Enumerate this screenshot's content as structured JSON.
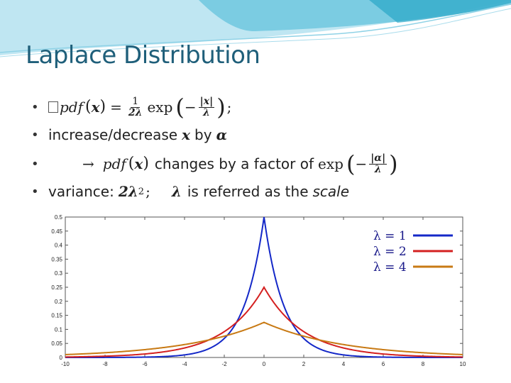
{
  "slide": {
    "title": "Laplace Distribution"
  },
  "bullets": [
    {
      "marker": "•",
      "glyph": "",
      "pdf": "pdf",
      "x": "x",
      "eq": "=",
      "frac1_num": "1",
      "frac1_den": "2λ",
      "exp": "exp",
      "frac2_num": "|x|",
      "frac2_den": "λ",
      "tail": ";"
    },
    {
      "marker": "•",
      "text_a": "increase/decrease",
      "x": "x",
      "text_b": "by",
      "alpha": "α"
    },
    {
      "marker": "•",
      "arrow": "→",
      "pdf": "pdf",
      "x": "x",
      "text": "changes by a factor of",
      "exp": "exp",
      "frac_num": "|α|",
      "frac_den": "λ"
    },
    {
      "marker": "•",
      "label": "variance:",
      "value": "2λ",
      "sup": "2",
      "sep": ";",
      "lambda": "λ",
      "text": "is referred as the",
      "scale": "scale"
    }
  ],
  "chart_data": {
    "type": "line",
    "title": "",
    "xlabel": "",
    "ylabel": "",
    "xlim": [
      -10,
      10
    ],
    "ylim": [
      0,
      0.5
    ],
    "x_ticks": [
      -10,
      -8,
      -6,
      -4,
      -2,
      0,
      2,
      4,
      6,
      8,
      10
    ],
    "y_ticks": [
      0,
      0.05,
      0.1,
      0.15,
      0.2,
      0.25,
      0.3,
      0.35,
      0.4,
      0.45,
      0.5
    ],
    "y_tick_labels": [
      "0",
      "0.05",
      "0.1",
      "0.15",
      "0.2",
      "0.25",
      "0.3",
      "0.35",
      "0.4",
      "0.45",
      "0.5"
    ],
    "grid": false,
    "legend_position": "top-right",
    "series": [
      {
        "name": "λ = 1",
        "lambda": 1,
        "color": "#1428c8"
      },
      {
        "name": "λ = 2",
        "lambda": 2,
        "color": "#d42020"
      },
      {
        "name": "λ = 4",
        "lambda": 4,
        "color": "#c87a14"
      }
    ]
  },
  "colors": {
    "title": "#1f5f7a",
    "wave_light": "#bfe6f2",
    "wave_mid": "#6fc7df",
    "wave_dark": "#2aa7c8"
  }
}
